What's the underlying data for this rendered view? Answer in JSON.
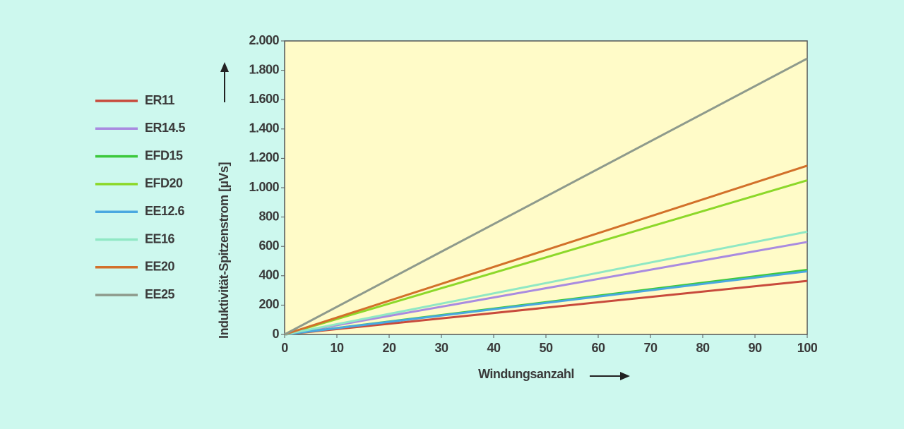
{
  "chart_data": {
    "type": "line",
    "x_label": "Windungsanzahl",
    "y_label": "Induktivität-Spitzenstrom [µVs]",
    "x": [
      0,
      100
    ],
    "series": [
      {
        "name": "ER11",
        "color": "#c84a3c",
        "values": [
          0,
          365
        ]
      },
      {
        "name": "ER14.5",
        "color": "#a98be0",
        "values": [
          0,
          630
        ]
      },
      {
        "name": "EFD15",
        "color": "#3cc83c",
        "values": [
          0,
          440
        ]
      },
      {
        "name": "EFD20",
        "color": "#8cd82a",
        "values": [
          0,
          1050
        ]
      },
      {
        "name": "EE12.6",
        "color": "#4aa8e0",
        "values": [
          0,
          430
        ]
      },
      {
        "name": "EE16",
        "color": "#90e8c4",
        "values": [
          0,
          700
        ]
      },
      {
        "name": "EE20",
        "color": "#d2702a",
        "values": [
          0,
          1150
        ]
      },
      {
        "name": "EE25",
        "color": "#8e9a8c",
        "values": [
          0,
          1880
        ]
      }
    ],
    "xlim": [
      0,
      100
    ],
    "xticks": [
      0,
      10,
      20,
      30,
      40,
      50,
      60,
      70,
      80,
      90,
      100
    ],
    "ylim": [
      0,
      2000
    ],
    "yticks": [
      0,
      200,
      400,
      600,
      800,
      {
        "value": 1000,
        "label": "1.000"
      },
      {
        "value": 1200,
        "label": "1.200"
      },
      {
        "value": 1400,
        "label": "1.400"
      },
      {
        "value": 1600,
        "label": "1.600"
      },
      {
        "value": 1800,
        "label": "1.800"
      },
      {
        "value": 2000,
        "label": "2.000"
      }
    ],
    "legend": "left"
  }
}
